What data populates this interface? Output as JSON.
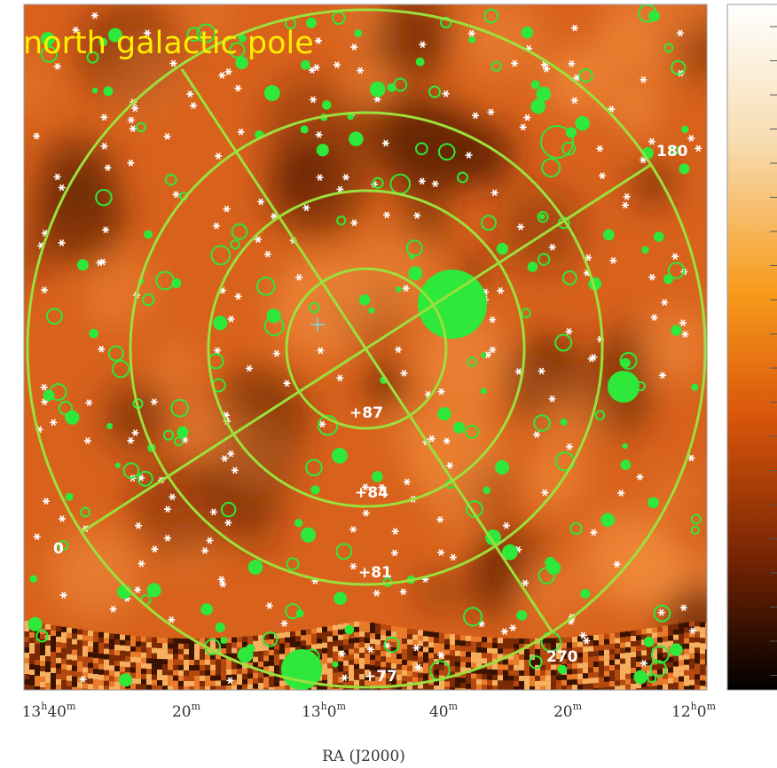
{
  "map": {
    "title": "north galactic pole",
    "ra_labels": [
      "180",
      "0",
      "270"
    ],
    "dec_labels": [
      "+87",
      "+84",
      "+81",
      "+77"
    ],
    "x_axis": {
      "ticks": [
        [
          [
            "13",
            "h"
          ],
          [
            "40",
            "m"
          ]
        ],
        [
          [
            "20",
            "m"
          ]
        ],
        [
          [
            "13",
            "h"
          ],
          [
            "0",
            "m"
          ]
        ],
        [
          [
            "40",
            "m"
          ]
        ],
        [
          [
            "20",
            "m"
          ]
        ],
        [
          [
            "12",
            "h"
          ],
          [
            "0",
            "m"
          ]
        ]
      ],
      "label": "RA (J2000)"
    }
  }
}
